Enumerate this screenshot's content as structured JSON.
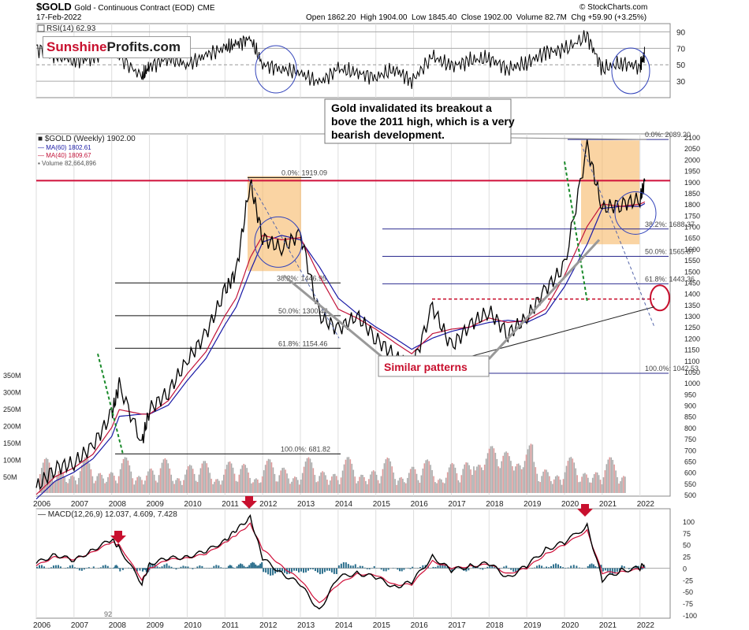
{
  "header": {
    "symbol": "$GOLD",
    "name": "Gold - Continuous Contract (EOD)",
    "exchange": "CME",
    "date": "17-Feb-2022",
    "open": "Open 1862.20",
    "high": "High 1904.00",
    "low": "Low 1845.40",
    "close": "Close 1902.00",
    "volume": "Volume 82.7M",
    "change": "Chg +59.90 (+3.25%)",
    "copyright": "© StockCharts.com"
  },
  "logo": {
    "part1": "Sunshine",
    "part2": "Profits.com"
  },
  "colors": {
    "bars_up": "#000000",
    "bars_down": "#b0182b",
    "ma60": "#1a1aa6",
    "ma40": "#c2143a",
    "highlight_line": "#d0103a",
    "rsi_line": "#000000",
    "macd": "#000000",
    "signal": "#d0103a",
    "histogram": "#2a6e8c",
    "box_fill": "#f7b766",
    "callout_red": "#c8102e"
  },
  "rsi_panel": {
    "label": "RSI(14) 62.93",
    "ticks": [
      "90",
      "70",
      "50",
      "30"
    ]
  },
  "price_panel": {
    "legend_title": "$GOLD (Weekly) 1902.00",
    "legend_ma60": "MA(60) 1802.61",
    "legend_ma40": "MA(40) 1809.67",
    "legend_volume": "Volume 82,664,896",
    "price_ticks": [
      "2100",
      "2050",
      "2000",
      "1950",
      "1900",
      "1850",
      "1800",
      "1750",
      "1700",
      "1650",
      "1600",
      "1550",
      "1500",
      "1450",
      "1400",
      "1350",
      "1300",
      "1250",
      "1200",
      "1150",
      "1100",
      "1050",
      "1000",
      "950",
      "900",
      "850",
      "800",
      "750",
      "700",
      "650",
      "600",
      "550",
      "500"
    ],
    "volume_ticks": [
      "350M",
      "300M",
      "250M",
      "200M",
      "150M",
      "100M",
      "50M"
    ],
    "fib_left": [
      "0.0%: 1919.09",
      "38.2%: 1446.95",
      "50.0%: 1300.46",
      "61.8%: 1154.46",
      "100.0%: 681.82"
    ],
    "fib_right": [
      "0.0%: 2089.20",
      "38.2%: 1688.37",
      "50.0%: 1565.87",
      "61.8%: 1443.36",
      "100.0%: 1042.53"
    ],
    "annotation": "Gold invalidated its breakout above the 2011 high, which is a very bearish development.",
    "similar_patterns": "Similar patterns"
  },
  "x_years": [
    "2006",
    "2007",
    "2008",
    "2009",
    "2010",
    "2011",
    "2012",
    "2013",
    "2014",
    "2015",
    "2016",
    "2017",
    "2018",
    "2019",
    "2020",
    "2021",
    "2022"
  ],
  "macd_panel": {
    "label": "MACD(12,26,9) 12.037, 4.609, 7.428",
    "ticks": [
      "100",
      "75",
      "50",
      "25",
      "0",
      "-25",
      "-50",
      "-75",
      "-100"
    ],
    "corner_number": "92"
  },
  "chart_data": {
    "type": "line",
    "title": "$GOLD Gold - Continuous Contract (EOD)",
    "x": [
      2006,
      2006.5,
      2007,
      2007.5,
      2008,
      2008.2,
      2008.8,
      2009,
      2009.5,
      2010,
      2010.5,
      2011,
      2011.3,
      2011.67,
      2012,
      2012.5,
      2013,
      2013.5,
      2014,
      2014.5,
      2015,
      2015.5,
      2015.95,
      2016.5,
      2017,
      2017.5,
      2018,
      2018.5,
      2019,
      2019.5,
      2020,
      2020.6,
      2021,
      2021.5,
      2022,
      2022.13
    ],
    "series": [
      {
        "name": "$GOLD (Weekly)",
        "values": [
          530,
          620,
          640,
          720,
          860,
          990,
          730,
          880,
          960,
          1100,
          1220,
          1410,
          1500,
          1900,
          1650,
          1600,
          1670,
          1300,
          1240,
          1300,
          1200,
          1120,
          1060,
          1340,
          1160,
          1260,
          1320,
          1220,
          1290,
          1420,
          1520,
          2060,
          1780,
          1800,
          1820,
          1902
        ]
      },
      {
        "name": "MA(60)",
        "values": [
          480,
          560,
          600,
          660,
          760,
          850,
          860,
          860,
          900,
          1010,
          1110,
          1260,
          1340,
          1500,
          1630,
          1660,
          1640,
          1520,
          1380,
          1310,
          1250,
          1200,
          1150,
          1200,
          1230,
          1250,
          1270,
          1280,
          1270,
          1310,
          1430,
          1620,
          1780,
          1790,
          1790,
          1802.61
        ]
      },
      {
        "name": "MA(40)",
        "values": [
          500,
          580,
          620,
          680,
          800,
          880,
          860,
          860,
          920,
          1040,
          1140,
          1300,
          1380,
          1560,
          1660,
          1640,
          1650,
          1480,
          1330,
          1290,
          1240,
          1180,
          1130,
          1220,
          1240,
          1250,
          1290,
          1270,
          1280,
          1330,
          1480,
          1700,
          1800,
          1790,
          1800,
          1809.67
        ]
      }
    ],
    "rsi": {
      "values": [
        70,
        62,
        55,
        58,
        72,
        60,
        35,
        48,
        58,
        50,
        62,
        70,
        75,
        82,
        50,
        45,
        40,
        28,
        45,
        40,
        35,
        45,
        30,
        60,
        48,
        55,
        58,
        45,
        52,
        65,
        68,
        85,
        45,
        52,
        48,
        62.93
      ]
    },
    "macd": {
      "macd_values": [
        10,
        30,
        15,
        40,
        60,
        45,
        -35,
        10,
        20,
        25,
        35,
        60,
        80,
        110,
        20,
        -10,
        -35,
        -90,
        -20,
        -10,
        -20,
        -40,
        -30,
        25,
        -5,
        5,
        10,
        -20,
        5,
        40,
        55,
        90,
        -25,
        -5,
        0,
        12.037
      ],
      "signal_values": [
        5,
        25,
        18,
        35,
        55,
        50,
        -25,
        0,
        18,
        22,
        30,
        55,
        70,
        95,
        40,
        5,
        -25,
        -75,
        -35,
        -12,
        -15,
        -35,
        -35,
        15,
        0,
        4,
        8,
        -12,
        0,
        30,
        50,
        80,
        -10,
        -8,
        -2,
        4.609
      ]
    },
    "fibonacci_left": [
      {
        "level": "0.0%",
        "value": 1919.09
      },
      {
        "level": "38.2%",
        "value": 1446.95
      },
      {
        "level": "50.0%",
        "value": 1300.46
      },
      {
        "level": "61.8%",
        "value": 1154.46
      },
      {
        "level": "100.0%",
        "value": 681.82
      }
    ],
    "fibonacci_right": [
      {
        "level": "0.0%",
        "value": 2089.2
      },
      {
        "level": "38.2%",
        "value": 1688.37
      },
      {
        "level": "50.0%",
        "value": 1565.87
      },
      {
        "level": "61.8%",
        "value": 1443.36
      },
      {
        "level": "100.0%",
        "value": 1042.53
      }
    ],
    "ylim": [
      500,
      2100
    ],
    "rsi_ylim": [
      10,
      100
    ],
    "macd_ylim": [
      -100,
      110
    ],
    "grid": true,
    "legend": "top-left"
  }
}
